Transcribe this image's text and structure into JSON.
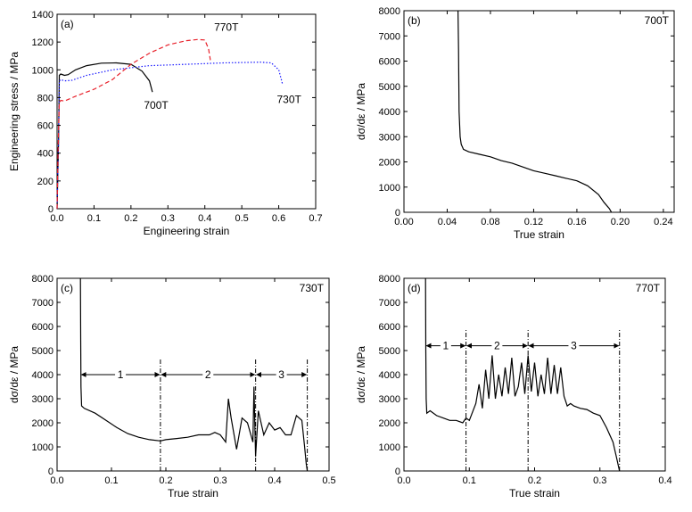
{
  "chart_data": [
    {
      "id": "a",
      "type": "line",
      "panel_label": "(a)",
      "xlabel": "Engineering strain",
      "ylabel": "Engineering stress / MPa",
      "xlim": [
        0,
        0.7
      ],
      "ylim": [
        0,
        1400
      ],
      "xticks": [
        0,
        0.1,
        0.2,
        0.3,
        0.4,
        0.5,
        0.6,
        0.7
      ],
      "xtick_labels": [
        "0.0",
        "0.1",
        "0.2",
        "0.3",
        "0.4",
        "0.5",
        "0.6",
        "0.7"
      ],
      "yticks": [
        0,
        200,
        400,
        600,
        800,
        1000,
        1200,
        1400
      ],
      "ytick_labels": [
        "0",
        "200",
        "400",
        "600",
        "800",
        "1000",
        "1200",
        "1400"
      ],
      "series": [
        {
          "name": "700T",
          "color": "#000000",
          "dash": "solid",
          "x": [
            0,
            0.004,
            0.006,
            0.01,
            0.02,
            0.03,
            0.05,
            0.08,
            0.12,
            0.16,
            0.2,
            0.23,
            0.25,
            0.258
          ],
          "y": [
            0,
            500,
            960,
            970,
            960,
            965,
            1000,
            1030,
            1048,
            1050,
            1040,
            990,
            920,
            840
          ]
        },
        {
          "name": "730T",
          "color": "#1a1aff",
          "dash": "dot",
          "x": [
            0,
            0.004,
            0.006,
            0.01,
            0.02,
            0.04,
            0.08,
            0.15,
            0.25,
            0.35,
            0.45,
            0.55,
            0.58,
            0.6,
            0.61
          ],
          "y": [
            0,
            500,
            920,
            930,
            920,
            925,
            960,
            1000,
            1030,
            1040,
            1050,
            1055,
            1050,
            1000,
            900
          ]
        },
        {
          "name": "770T",
          "color": "#e8202a",
          "dash": "dash",
          "x": [
            0,
            0.003,
            0.006,
            0.01,
            0.02,
            0.05,
            0.1,
            0.15,
            0.2,
            0.25,
            0.3,
            0.35,
            0.38,
            0.4,
            0.41,
            0.415
          ],
          "y": [
            0,
            450,
            760,
            780,
            775,
            810,
            860,
            930,
            1040,
            1120,
            1180,
            1210,
            1218,
            1215,
            1150,
            1070
          ]
        }
      ],
      "annotations": [
        {
          "text": "700T",
          "x": 0.235,
          "y": 720
        },
        {
          "text": "730T",
          "x": 0.595,
          "y": 760
        },
        {
          "text": "770T",
          "x": 0.425,
          "y": 1280
        }
      ]
    },
    {
      "id": "b",
      "type": "line",
      "panel_label": "(b)",
      "xlabel": "True strain",
      "ylabel": "dσ/dε / MPa",
      "xlim": [
        0,
        0.25
      ],
      "ylim": [
        0,
        8000
      ],
      "xticks": [
        0,
        0.04,
        0.08,
        0.12,
        0.16,
        0.2,
        0.24
      ],
      "xtick_labels": [
        "0.00",
        "0.04",
        "0.08",
        "0.12",
        "0.16",
        "0.20",
        "0.24"
      ],
      "yticks": [
        0,
        1000,
        2000,
        3000,
        4000,
        5000,
        6000,
        7000,
        8000
      ],
      "ytick_labels": [
        "0",
        "1000",
        "2000",
        "3000",
        "4000",
        "5000",
        "6000",
        "7000",
        "8000"
      ],
      "series": [
        {
          "name": "700T",
          "color": "#000000",
          "x": [
            0.05,
            0.0505,
            0.051,
            0.052,
            0.053,
            0.055,
            0.06,
            0.07,
            0.08,
            0.09,
            0.1,
            0.11,
            0.12,
            0.13,
            0.14,
            0.15,
            0.16,
            0.17,
            0.18,
            0.185,
            0.19,
            0.192
          ],
          "y": [
            8000,
            6500,
            4000,
            3000,
            2700,
            2500,
            2400,
            2300,
            2200,
            2050,
            1950,
            1800,
            1650,
            1550,
            1450,
            1350,
            1250,
            1050,
            700,
            400,
            150,
            0
          ]
        }
      ],
      "annotations": [
        {
          "text": "700T",
          "corner": "top-right"
        }
      ]
    },
    {
      "id": "c",
      "type": "line",
      "panel_label": "(c)",
      "xlabel": "True strain",
      "ylabel": "dσ/dε / MPa",
      "xlim": [
        0,
        0.5
      ],
      "ylim": [
        0,
        8000
      ],
      "xticks": [
        0,
        0.1,
        0.2,
        0.3,
        0.4,
        0.5
      ],
      "xtick_labels": [
        "0.0",
        "0.1",
        "0.2",
        "0.3",
        "0.4",
        "0.5"
      ],
      "yticks": [
        0,
        1000,
        2000,
        3000,
        4000,
        5000,
        6000,
        7000,
        8000
      ],
      "ytick_labels": [
        "0",
        "1000",
        "2000",
        "3000",
        "4000",
        "5000",
        "6000",
        "7000",
        "8000"
      ],
      "series": [
        {
          "name": "730T",
          "color": "#000000",
          "x": [
            0.043,
            0.0435,
            0.044,
            0.045,
            0.05,
            0.07,
            0.09,
            0.11,
            0.13,
            0.15,
            0.17,
            0.19,
            0.2,
            0.22,
            0.24,
            0.26,
            0.28,
            0.29,
            0.3,
            0.31,
            0.315,
            0.32,
            0.33,
            0.34,
            0.35,
            0.36,
            0.362,
            0.365,
            0.37,
            0.38,
            0.39,
            0.4,
            0.41,
            0.42,
            0.43,
            0.44,
            0.45,
            0.455,
            0.458,
            0.46
          ],
          "y": [
            8000,
            5500,
            3500,
            2700,
            2600,
            2400,
            2100,
            1800,
            1550,
            1400,
            1300,
            1250,
            1300,
            1350,
            1400,
            1500,
            1500,
            1600,
            1500,
            1200,
            3000,
            2200,
            900,
            2200,
            2000,
            1200,
            3500,
            600,
            2500,
            1500,
            2000,
            1700,
            1800,
            1500,
            1500,
            2300,
            2100,
            1000,
            300,
            0
          ]
        }
      ],
      "boundaries": [
        0.19,
        0.365,
        0.46
      ],
      "stages": [
        {
          "label": "1",
          "from": 0.043,
          "to": 0.19
        },
        {
          "label": "2",
          "from": 0.19,
          "to": 0.365
        },
        {
          "label": "3",
          "from": 0.365,
          "to": 0.46
        }
      ],
      "stage_arrow_y": 4000,
      "annotations": [
        {
          "text": "730T",
          "corner": "top-right"
        }
      ]
    },
    {
      "id": "d",
      "type": "line",
      "panel_label": "(d)",
      "xlabel": "True strain",
      "ylabel": "dσ/dε / MPa",
      "xlim": [
        0,
        0.4
      ],
      "ylim": [
        0,
        8000
      ],
      "xticks": [
        0,
        0.1,
        0.2,
        0.3,
        0.4
      ],
      "xtick_labels": [
        "0.0",
        "0.1",
        "0.2",
        "0.3",
        "0.4"
      ],
      "yticks": [
        0,
        1000,
        2000,
        3000,
        4000,
        5000,
        6000,
        7000,
        8000
      ],
      "ytick_labels": [
        "0",
        "1000",
        "2000",
        "3000",
        "4000",
        "5000",
        "6000",
        "7000",
        "8000"
      ],
      "series": [
        {
          "name": "770T",
          "color": "#000000",
          "x": [
            0.033,
            0.0335,
            0.034,
            0.035,
            0.04,
            0.05,
            0.06,
            0.07,
            0.08,
            0.09,
            0.095,
            0.1,
            0.11,
            0.115,
            0.12,
            0.125,
            0.13,
            0.135,
            0.14,
            0.145,
            0.15,
            0.155,
            0.16,
            0.165,
            0.17,
            0.175,
            0.18,
            0.185,
            0.19,
            0.195,
            0.2,
            0.205,
            0.21,
            0.215,
            0.22,
            0.225,
            0.23,
            0.235,
            0.24,
            0.245,
            0.25,
            0.255,
            0.26,
            0.27,
            0.28,
            0.29,
            0.3,
            0.31,
            0.32,
            0.325,
            0.33
          ],
          "y": [
            8000,
            5000,
            3000,
            2400,
            2500,
            2300,
            2200,
            2100,
            2100,
            2000,
            2200,
            2100,
            2800,
            3600,
            2600,
            4200,
            3000,
            4800,
            3000,
            4000,
            3100,
            4300,
            3200,
            4700,
            3100,
            3500,
            4500,
            3200,
            4800,
            3300,
            4500,
            3100,
            4000,
            3200,
            4700,
            3200,
            4400,
            3200,
            4300,
            3100,
            2700,
            2800,
            2700,
            2600,
            2550,
            2400,
            2300,
            1800,
            1200,
            600,
            0
          ]
        }
      ],
      "boundaries": [
        0.095,
        0.19,
        0.33
      ],
      "stages": [
        {
          "label": "1",
          "from": 0.033,
          "to": 0.095
        },
        {
          "label": "2",
          "from": 0.095,
          "to": 0.19
        },
        {
          "label": "3",
          "from": 0.19,
          "to": 0.33
        }
      ],
      "stage_arrow_y": 5200,
      "annotations": [
        {
          "text": "770T",
          "corner": "top-right"
        }
      ]
    }
  ]
}
